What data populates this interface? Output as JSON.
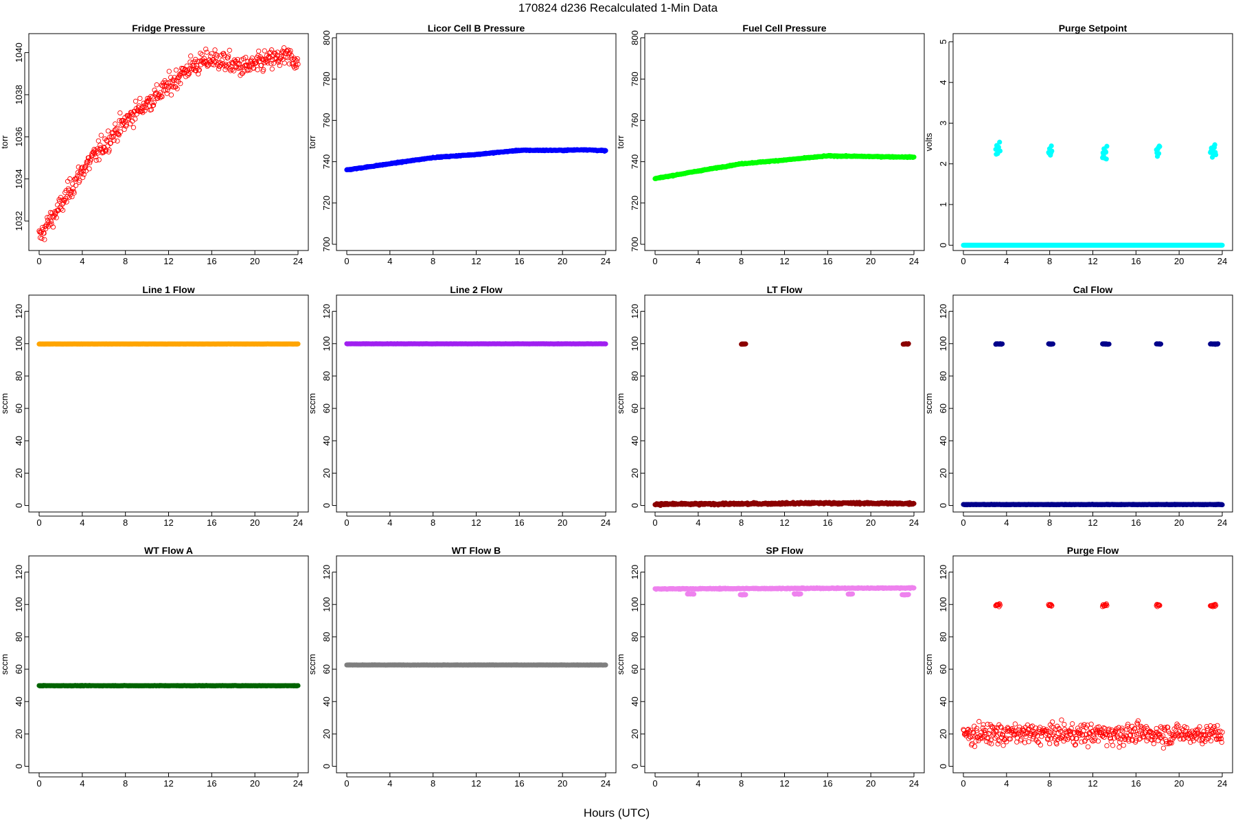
{
  "main_title": "170824   d236   Recalculated 1-Min Data",
  "x_axis_label": "Hours (UTC)",
  "chart_data": [
    {
      "type": "scatter",
      "title": "Fridge Pressure",
      "ylabel": "torr",
      "color": "#ff0000",
      "marker": "open-circle",
      "xlim": [
        0,
        24
      ],
      "xticks": [
        0,
        4,
        8,
        12,
        16,
        20,
        24
      ],
      "ylim": [
        1030.6,
        1040.9
      ],
      "yticks": [
        1032,
        1034,
        1036,
        1038,
        1040
      ],
      "curve": [
        [
          0,
          1031.2
        ],
        [
          1,
          1032.0
        ],
        [
          2,
          1032.7
        ],
        [
          3,
          1033.6
        ],
        [
          4,
          1034.4
        ],
        [
          5,
          1035.0
        ],
        [
          6,
          1035.6
        ],
        [
          7,
          1036.2
        ],
        [
          8,
          1036.7
        ],
        [
          9,
          1037.2
        ],
        [
          10,
          1037.6
        ],
        [
          11,
          1038.0
        ],
        [
          12,
          1038.4
        ],
        [
          13,
          1038.9
        ],
        [
          14,
          1039.3
        ],
        [
          15,
          1039.5
        ],
        [
          16,
          1039.7
        ],
        [
          17,
          1039.6
        ],
        [
          18,
          1039.4
        ],
        [
          19,
          1039.3
        ],
        [
          20,
          1039.4
        ],
        [
          21,
          1039.6
        ],
        [
          22,
          1039.7
        ],
        [
          23,
          1039.8
        ],
        [
          24,
          1039.6
        ]
      ],
      "noise": 0.35,
      "clusters": []
    },
    {
      "type": "scatter",
      "title": "Licor Cell B Pressure",
      "ylabel": "torr",
      "color": "#0000ff",
      "marker": "filled",
      "xlim": [
        0,
        24
      ],
      "xticks": [
        0,
        4,
        8,
        12,
        16,
        20,
        24
      ],
      "ylim": [
        697,
        802
      ],
      "yticks": [
        700,
        720,
        740,
        760,
        780,
        800
      ],
      "curve": [
        [
          0,
          736
        ],
        [
          4,
          739
        ],
        [
          8,
          742
        ],
        [
          12,
          743.5
        ],
        [
          16,
          745.5
        ],
        [
          20,
          745.5
        ],
        [
          22,
          745.8
        ],
        [
          24,
          745.3
        ]
      ],
      "noise": 0.15,
      "clusters": []
    },
    {
      "type": "scatter",
      "title": "Fuel Cell Pressure",
      "ylabel": "torr",
      "color": "#00ff00",
      "marker": "filled",
      "xlim": [
        0,
        24
      ],
      "xticks": [
        0,
        4,
        8,
        12,
        16,
        20,
        24
      ],
      "ylim": [
        697,
        802
      ],
      "yticks": [
        700,
        720,
        740,
        760,
        780,
        800
      ],
      "curve": [
        [
          0,
          731.8
        ],
        [
          4,
          735.5
        ],
        [
          8,
          739
        ],
        [
          12,
          740.8
        ],
        [
          16,
          742.8
        ],
        [
          20,
          742.5
        ],
        [
          24,
          742.2
        ]
      ],
      "noise": 0.15,
      "clusters": []
    },
    {
      "type": "scatter",
      "title": "Purge Setpoint",
      "ylabel": "volts",
      "color": "#00ffff",
      "marker": "filled",
      "xlim": [
        0,
        24
      ],
      "xticks": [
        0,
        4,
        8,
        12,
        16,
        20,
        24
      ],
      "ylim": [
        -0.13,
        5.2
      ],
      "yticks": [
        0,
        1,
        2,
        3,
        4,
        5
      ],
      "curve": [
        [
          0,
          0.0
        ],
        [
          24,
          0.0
        ]
      ],
      "noise": 0.0,
      "clusters": [
        {
          "x0": 3.0,
          "x1": 3.4,
          "y": 2.3
        },
        {
          "x0": 7.9,
          "x1": 8.2,
          "y": 2.3
        },
        {
          "x0": 12.9,
          "x1": 13.3,
          "y": 2.3
        },
        {
          "x0": 17.9,
          "x1": 18.2,
          "y": 2.3
        },
        {
          "x0": 22.9,
          "x1": 23.4,
          "y": 2.3
        }
      ]
    },
    {
      "type": "scatter",
      "title": "Line 1 Flow",
      "ylabel": "sccm",
      "color": "#ffa500",
      "marker": "filled",
      "xlim": [
        0,
        24
      ],
      "xticks": [
        0,
        4,
        8,
        12,
        16,
        20,
        24
      ],
      "ylim": [
        -4,
        130
      ],
      "yticks": [
        0,
        20,
        40,
        60,
        80,
        100,
        120
      ],
      "curve": [
        [
          0,
          99.8
        ],
        [
          24,
          99.8
        ]
      ],
      "noise": 0.05,
      "clusters": []
    },
    {
      "type": "scatter",
      "title": "Line 2 Flow",
      "ylabel": "sccm",
      "color": "#a020f0",
      "marker": "filled",
      "xlim": [
        0,
        24
      ],
      "xticks": [
        0,
        4,
        8,
        12,
        16,
        20,
        24
      ],
      "ylim": [
        -4,
        130
      ],
      "yticks": [
        0,
        20,
        40,
        60,
        80,
        100,
        120
      ],
      "curve": [
        [
          0,
          99.9
        ],
        [
          24,
          99.9
        ]
      ],
      "noise": 0.05,
      "clusters": []
    },
    {
      "type": "scatter",
      "title": "LT Flow",
      "ylabel": "sccm",
      "color": "#8b0000",
      "marker": "filled",
      "xlim": [
        0,
        24
      ],
      "xticks": [
        0,
        4,
        8,
        12,
        16,
        20,
        24
      ],
      "ylim": [
        -4,
        130
      ],
      "yticks": [
        0,
        20,
        40,
        60,
        80,
        100,
        120
      ],
      "curve": [
        [
          0,
          0.8
        ],
        [
          8,
          1.0
        ],
        [
          16,
          1.5
        ],
        [
          24,
          1.2
        ]
      ],
      "noise": 0.4,
      "clusters": [
        {
          "x0": 8.0,
          "x1": 8.4,
          "y": 99.8
        },
        {
          "x0": 23.0,
          "x1": 23.5,
          "y": 99.8
        }
      ]
    },
    {
      "type": "scatter",
      "title": "Cal Flow",
      "ylabel": "sccm",
      "color": "#00008b",
      "marker": "filled",
      "xlim": [
        0,
        24
      ],
      "xticks": [
        0,
        4,
        8,
        12,
        16,
        20,
        24
      ],
      "ylim": [
        -4,
        130
      ],
      "yticks": [
        0,
        20,
        40,
        60,
        80,
        100,
        120
      ],
      "curve": [
        [
          0,
          0.6
        ],
        [
          24,
          0.6
        ]
      ],
      "noise": 0.1,
      "clusters": [
        {
          "x0": 3.0,
          "x1": 3.6,
          "y": 99.8
        },
        {
          "x0": 7.9,
          "x1": 8.3,
          "y": 99.8
        },
        {
          "x0": 12.9,
          "x1": 13.5,
          "y": 99.8
        },
        {
          "x0": 17.9,
          "x1": 18.3,
          "y": 99.8
        },
        {
          "x0": 22.9,
          "x1": 23.6,
          "y": 99.8
        }
      ]
    },
    {
      "type": "scatter",
      "title": "WT Flow A",
      "ylabel": "sccm",
      "color": "#006400",
      "marker": "filled",
      "xlim": [
        0,
        24
      ],
      "xticks": [
        0,
        4,
        8,
        12,
        16,
        20,
        24
      ],
      "ylim": [
        -4,
        130
      ],
      "yticks": [
        0,
        20,
        40,
        60,
        80,
        100,
        120
      ],
      "curve": [
        [
          0,
          49.8
        ],
        [
          24,
          49.8
        ]
      ],
      "noise": 0.1,
      "clusters": []
    },
    {
      "type": "scatter",
      "title": "WT Flow B",
      "ylabel": "sccm",
      "color": "#7f7f7f",
      "marker": "filled",
      "xlim": [
        0,
        24
      ],
      "xticks": [
        0,
        4,
        8,
        12,
        16,
        20,
        24
      ],
      "ylim": [
        -4,
        130
      ],
      "yticks": [
        0,
        20,
        40,
        60,
        80,
        100,
        120
      ],
      "curve": [
        [
          0,
          62.6
        ],
        [
          24,
          62.6
        ]
      ],
      "noise": 0.05,
      "clusters": []
    },
    {
      "type": "scatter",
      "title": "SP Flow",
      "ylabel": "sccm",
      "color": "#ee82ee",
      "marker": "filled",
      "xlim": [
        0,
        24
      ],
      "xticks": [
        0,
        4,
        8,
        12,
        16,
        20,
        24
      ],
      "ylim": [
        -4,
        130
      ],
      "yticks": [
        0,
        20,
        40,
        60,
        80,
        100,
        120
      ],
      "curve": [
        [
          0,
          109.6
        ],
        [
          24,
          110.2
        ]
      ],
      "noise": 0.2,
      "clusters": [
        {
          "x0": 3.0,
          "x1": 3.6,
          "y": 106.5
        },
        {
          "x0": 7.9,
          "x1": 8.4,
          "y": 106.0
        },
        {
          "x0": 12.9,
          "x1": 13.5,
          "y": 106.5
        },
        {
          "x0": 17.9,
          "x1": 18.3,
          "y": 106.5
        },
        {
          "x0": 22.9,
          "x1": 23.5,
          "y": 106.0
        }
      ]
    },
    {
      "type": "scatter",
      "title": "Purge Flow",
      "ylabel": "sccm",
      "color": "#ff0000",
      "marker": "open-circle",
      "xlim": [
        0,
        24
      ],
      "xticks": [
        0,
        4,
        8,
        12,
        16,
        20,
        24
      ],
      "ylim": [
        -4,
        130
      ],
      "yticks": [
        0,
        20,
        40,
        60,
        80,
        100,
        120
      ],
      "curve": [
        [
          0,
          20
        ],
        [
          24,
          20
        ]
      ],
      "noise": 4.5,
      "clusters": [
        {
          "x0": 3.0,
          "x1": 3.4,
          "y": 99.5
        },
        {
          "x0": 7.9,
          "x1": 8.2,
          "y": 99.5
        },
        {
          "x0": 12.9,
          "x1": 13.3,
          "y": 99.5
        },
        {
          "x0": 17.9,
          "x1": 18.2,
          "y": 99.5
        },
        {
          "x0": 22.9,
          "x1": 23.4,
          "y": 99.5
        }
      ]
    }
  ]
}
